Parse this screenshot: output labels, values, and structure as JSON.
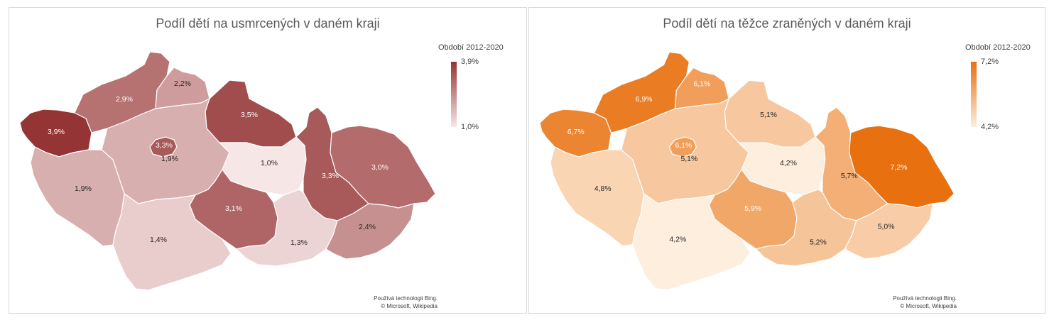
{
  "maps": [
    {
      "title": "Podíl dětí na usmrcených v daném kraji",
      "legend": {
        "title": "Období 2012-2020",
        "max": "3,9%",
        "min": "1,0%"
      },
      "attribution": [
        "Používá technologii Bing.",
        "© Microsoft, Wikipedia"
      ],
      "regions": [
        {
          "name": "Karlovarský",
          "value": 3.9,
          "label": "3,9%"
        },
        {
          "name": "Ústecký",
          "value": 2.9,
          "label": "2,9%"
        },
        {
          "name": "Liberecký",
          "value": 2.2,
          "label": "2,2%"
        },
        {
          "name": "Královéhradecký",
          "value": 3.5,
          "label": "3,5%"
        },
        {
          "name": "Praha",
          "value": 3.3,
          "label": "3,3%"
        },
        {
          "name": "Středočeský",
          "value": 1.9,
          "label": "1,9%"
        },
        {
          "name": "Pardubický",
          "value": 1.0,
          "label": "1,0%"
        },
        {
          "name": "Olomoucký",
          "value": 3.3,
          "label": "3,3%"
        },
        {
          "name": "Moravskoslezský",
          "value": 3.0,
          "label": "3,0%"
        },
        {
          "name": "Plzeňský",
          "value": 1.9,
          "label": "1,9%"
        },
        {
          "name": "Vysočina",
          "value": 3.1,
          "label": "3,1%"
        },
        {
          "name": "Jihočeský",
          "value": 1.4,
          "label": "1,4%"
        },
        {
          "name": "Jihomoravský",
          "value": 1.3,
          "label": "1,3%"
        },
        {
          "name": "Zlínský",
          "value": 2.4,
          "label": "2,4%"
        }
      ],
      "scale": {
        "min": 1.0,
        "max": 3.9,
        "color_min": "#f7e6e6",
        "color_max": "#943434"
      }
    },
    {
      "title": "Podíl dětí na těžce zraněných v daném kraji",
      "legend": {
        "title": "Období 2012-2020",
        "max": "7,2%",
        "min": "4,2%"
      },
      "attribution": [
        "Používá technologii Bing.",
        "© Microsoft, Wikipedia"
      ],
      "regions": [
        {
          "name": "Karlovarský",
          "value": 6.7,
          "label": "6,7%"
        },
        {
          "name": "Ústecký",
          "value": 6.9,
          "label": "6,9%"
        },
        {
          "name": "Liberecký",
          "value": 6.1,
          "label": "6,1%"
        },
        {
          "name": "Královéhradecký",
          "value": 5.1,
          "label": "5,1%"
        },
        {
          "name": "Praha",
          "value": 6.1,
          "label": "6,1%"
        },
        {
          "name": "Středočeský",
          "value": 5.1,
          "label": "5,1%"
        },
        {
          "name": "Pardubický",
          "value": 4.2,
          "label": "4,2%"
        },
        {
          "name": "Olomoucký",
          "value": 5.7,
          "label": "5,7%"
        },
        {
          "name": "Moravskoslezský",
          "value": 7.2,
          "label": "7,2%"
        },
        {
          "name": "Plzeňský",
          "value": 4.8,
          "label": "4,8%"
        },
        {
          "name": "Vysočina",
          "value": 5.9,
          "label": "5,9%"
        },
        {
          "name": "Jihočeský",
          "value": 4.2,
          "label": "4,2%"
        },
        {
          "name": "Jihomoravský",
          "value": 5.2,
          "label": "5,2%"
        },
        {
          "name": "Zlínský",
          "value": 5.0,
          "label": "5,0%"
        }
      ],
      "scale": {
        "min": 4.2,
        "max": 7.2,
        "color_min": "#fdeede",
        "color_max": "#e8700e"
      }
    }
  ]
}
